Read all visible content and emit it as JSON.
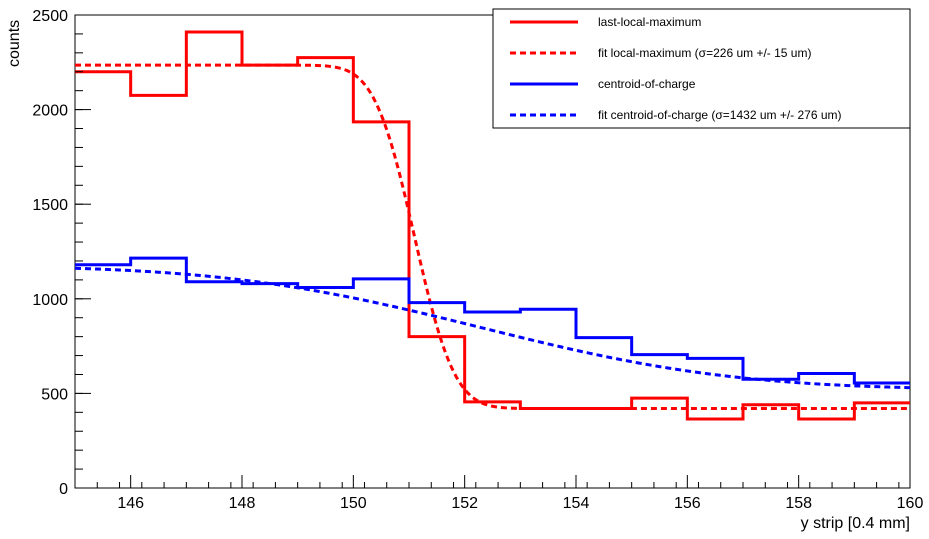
{
  "chart_data": {
    "type": "line",
    "title": "",
    "xlabel": "y strip [0.4 mm]",
    "ylabel": "counts",
    "xlim": [
      145,
      160
    ],
    "ylim": [
      0,
      2500
    ],
    "xticks": [
      146,
      148,
      150,
      152,
      154,
      156,
      158,
      160
    ],
    "yticks": [
      0,
      500,
      1000,
      1500,
      2000,
      2500
    ],
    "grid": false,
    "legend_position": "top-right",
    "bin_edges": [
      145,
      146,
      147,
      148,
      149,
      150,
      151,
      152,
      153,
      154,
      155,
      156,
      157,
      158,
      159,
      160
    ],
    "series": [
      {
        "name": "last-local-maximum",
        "kind": "histogram",
        "color": "#ff0000",
        "style": "solid",
        "values": [
          2200,
          2075,
          2410,
          2235,
          2275,
          1935,
          800,
          455,
          420,
          420,
          475,
          365,
          440,
          365,
          450
        ]
      },
      {
        "name": "fit local-maximum (σ=226 um +/- 15 um)",
        "kind": "fit",
        "color": "#ff0000",
        "style": "dashed",
        "model": "erfc",
        "low": 420,
        "high": 2235,
        "center": 151.1,
        "sigma_bins": 0.565
      },
      {
        "name": "centroid-of-charge",
        "kind": "histogram",
        "color": "#0000ff",
        "style": "solid",
        "values": [
          1180,
          1215,
          1090,
          1080,
          1060,
          1105,
          980,
          930,
          945,
          795,
          705,
          685,
          575,
          605,
          555
        ]
      },
      {
        "name": "fit centroid-of-charge (σ=1432 um +/- 276 um)",
        "kind": "fit",
        "color": "#0000ff",
        "style": "dashed",
        "model": "erfc",
        "low": 520,
        "high": 1175,
        "center": 152.3,
        "sigma_bins": 3.58
      }
    ]
  }
}
